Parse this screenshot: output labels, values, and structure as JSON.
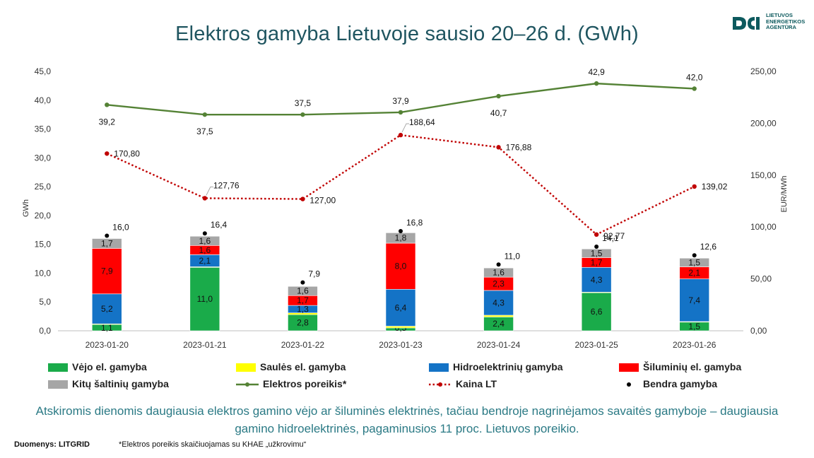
{
  "title": "Elektros gamyba Lietuvoje sausio 20–26 d. (GWh)",
  "logo": {
    "text": "LIETUVOS\nENERGETIKOS\nAGENTŪRA",
    "color": "#0d5a5e"
  },
  "note": "Atskiromis dienomis daugiausia  elektros gamino vėjo ar šiluminės elektrinės, tačiau bendroje nagrinėjamos savaitės gamyboje – daugiausia  gamino hidroelektrinės, pagaminusios 11 proc. Lietuvos poreikio.",
  "source": "Duomenys: LITGRID",
  "footnote": "*Elektros poreikis skaičiuojamas su KHAE „užkrovimu“",
  "chart_data": {
    "type": "bar",
    "stacked": true,
    "categories": [
      "2023-01-20",
      "2023-01-21",
      "2023-01-22",
      "2023-01-23",
      "2023-01-24",
      "2023-01-25",
      "2023-01-26"
    ],
    "y_left": {
      "label": "GWh",
      "range": [
        0,
        45
      ],
      "step": 5,
      "ticks": [
        "0,0",
        "5,0",
        "10,0",
        "15,0",
        "20,0",
        "25,0",
        "30,0",
        "35,0",
        "40,0",
        "45,0"
      ]
    },
    "y_right": {
      "label": "EUR/MWh",
      "range": [
        0,
        250
      ],
      "step": 50,
      "ticks": [
        "0,00",
        "50,00",
        "100,00",
        "150,00",
        "200,00",
        "250,00"
      ]
    },
    "series": [
      {
        "name": "Vėjo el. gamyba",
        "color": "#1aab4a",
        "values": [
          1.1,
          11.0,
          2.8,
          0.5,
          2.4,
          6.6,
          1.5
        ],
        "labels": [
          "1,1",
          "11,0",
          "2,8",
          "0,5",
          "2,4",
          "6,6",
          "1,5"
        ]
      },
      {
        "name": "Saulės el. gamyba",
        "color": "#ffff00",
        "values": [
          0.1,
          0.1,
          0.3,
          0.3,
          0.3,
          0.1,
          0.1
        ],
        "labels": [
          "",
          "",
          "",
          "",
          "",
          "",
          ""
        ]
      },
      {
        "name": "Hidroelektrinių gamyba",
        "color": "#1473c6",
        "values": [
          5.2,
          2.1,
          1.3,
          6.4,
          4.3,
          4.3,
          7.4
        ],
        "labels": [
          "5,2",
          "2,1",
          "1,3",
          "6,4",
          "4,3",
          "4,3",
          "7,4"
        ]
      },
      {
        "name": "Šiluminių el. gamyba",
        "color": "#ff0000",
        "values": [
          7.9,
          1.6,
          1.7,
          8.0,
          2.3,
          1.7,
          2.1
        ],
        "labels": [
          "7,9",
          "1,6",
          "1,7",
          "8,0",
          "2,3",
          "1,7",
          "2,1"
        ]
      },
      {
        "name": "Kitų  šaltinių gamyba",
        "color": "#a6a6a6",
        "values": [
          1.7,
          1.6,
          1.6,
          1.8,
          1.6,
          1.5,
          1.5
        ],
        "labels": [
          "1,7",
          "1,6",
          "1,6",
          "1,8",
          "1,6",
          "1,5",
          "1,5"
        ]
      }
    ],
    "demand": {
      "name": "Elektros poreikis*",
      "color": "#548235",
      "values": [
        39.2,
        37.5,
        37.5,
        37.9,
        40.7,
        42.9,
        42.0
      ],
      "labels": [
        "39,2",
        "37,5",
        "37,5",
        "37,9",
        "40,7",
        "42,9",
        "42,0"
      ]
    },
    "price": {
      "name": "Kaina LT",
      "color": "#c00000",
      "axis": "right",
      "values": [
        170.8,
        127.76,
        127.0,
        188.64,
        176.88,
        92.77,
        139.02
      ],
      "labels": [
        "170,80",
        "127,76",
        "127,00",
        "188,64",
        "176,88",
        "92,77",
        "139,02"
      ]
    },
    "total": {
      "name": "Bendra gamyba",
      "color": "#000000",
      "values": [
        16.0,
        16.4,
        7.9,
        16.8,
        11.0,
        14.1,
        12.6
      ],
      "labels": [
        "16,0",
        "16,4",
        "7,9",
        "16,8",
        "11,0",
        "14,1",
        "12,6"
      ]
    },
    "legend": {
      "position": "bottom"
    }
  }
}
